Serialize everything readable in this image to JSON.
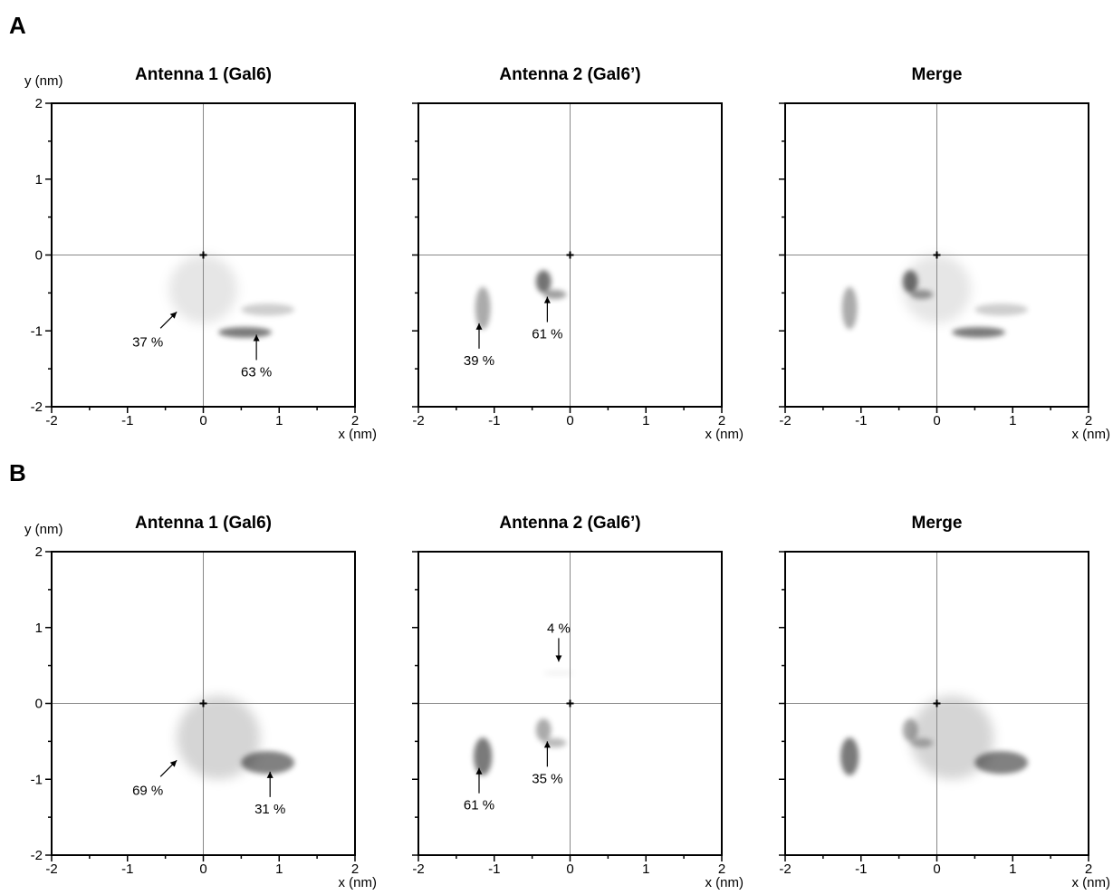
{
  "chart_data": [
    {
      "type": "heatmap",
      "panel": "A",
      "title": "Antenna 1 (Gal6)",
      "xlabel": "x (nm)",
      "ylabel": "y (nm)",
      "xlim": [
        -2,
        2
      ],
      "ylim": [
        -2,
        2
      ],
      "xticks": [
        "-2",
        "-1",
        "0",
        "1",
        "2"
      ],
      "yticks": [
        "-2",
        "-1",
        "0",
        "1",
        "2"
      ],
      "grid": "crosshair at origin",
      "density_clusters": [
        {
          "center": [
            0.0,
            -0.45
          ],
          "spread": [
            0.45,
            0.45
          ],
          "strength": 0.18
        },
        {
          "center": [
            0.55,
            -1.02
          ],
          "spread": [
            0.35,
            0.07
          ],
          "strength": 0.95
        },
        {
          "center": [
            0.85,
            -0.72
          ],
          "spread": [
            0.35,
            0.08
          ],
          "strength": 0.35
        }
      ],
      "annotations": [
        {
          "text": "37 %",
          "x": -0.35,
          "y": -0.75,
          "direction": "from-lower-left"
        },
        {
          "text": "63 %",
          "x": 0.7,
          "y": -1.05,
          "direction": "from-below"
        }
      ]
    },
    {
      "type": "heatmap",
      "panel": "A",
      "title": "Antenna 2 (Gal6’)",
      "xlabel": "x (nm)",
      "ylabel": "",
      "xlim": [
        -2,
        2
      ],
      "ylim": [
        -2,
        2
      ],
      "xticks": [
        "-2",
        "-1",
        "0",
        "1",
        "2"
      ],
      "yticks": [],
      "grid": "crosshair at origin",
      "density_clusters": [
        {
          "center": [
            -1.15,
            -0.7
          ],
          "spread": [
            0.1,
            0.28
          ],
          "strength": 0.6
        },
        {
          "center": [
            -0.35,
            -0.35
          ],
          "spread": [
            0.1,
            0.15
          ],
          "strength": 1.0
        },
        {
          "center": [
            -0.2,
            -0.52
          ],
          "spread": [
            0.15,
            0.06
          ],
          "strength": 0.7
        }
      ],
      "annotations": [
        {
          "text": "39 %",
          "x": -1.2,
          "y": -0.9,
          "direction": "from-below"
        },
        {
          "text": "61 %",
          "x": -0.3,
          "y": -0.55,
          "direction": "from-below"
        }
      ]
    },
    {
      "type": "heatmap",
      "panel": "A",
      "title": "Merge",
      "xlabel": "x (nm)",
      "ylabel": "",
      "xlim": [
        -2,
        2
      ],
      "ylim": [
        -2,
        2
      ],
      "xticks": [
        "-2",
        "-1",
        "0",
        "1",
        "2"
      ],
      "yticks": [],
      "grid": "crosshair at origin",
      "density_clusters": [
        {
          "center": [
            0.0,
            -0.45
          ],
          "spread": [
            0.45,
            0.45
          ],
          "strength": 0.18
        },
        {
          "center": [
            0.55,
            -1.02
          ],
          "spread": [
            0.35,
            0.07
          ],
          "strength": 0.95
        },
        {
          "center": [
            0.85,
            -0.72
          ],
          "spread": [
            0.35,
            0.08
          ],
          "strength": 0.35
        },
        {
          "center": [
            -1.15,
            -0.7
          ],
          "spread": [
            0.1,
            0.28
          ],
          "strength": 0.6
        },
        {
          "center": [
            -0.35,
            -0.35
          ],
          "spread": [
            0.1,
            0.15
          ],
          "strength": 1.0
        },
        {
          "center": [
            -0.2,
            -0.52
          ],
          "spread": [
            0.15,
            0.06
          ],
          "strength": 0.7
        }
      ],
      "annotations": []
    },
    {
      "type": "heatmap",
      "panel": "B",
      "title": "Antenna 1 (Gal6)",
      "xlabel": "x (nm)",
      "ylabel": "y (nm)",
      "xlim": [
        -2,
        2
      ],
      "ylim": [
        -2,
        2
      ],
      "xticks": [
        "-2",
        "-1",
        "0",
        "1",
        "2"
      ],
      "yticks": [
        "-2",
        "-1",
        "0",
        "1",
        "2"
      ],
      "grid": "crosshair at origin",
      "density_clusters": [
        {
          "center": [
            0.2,
            -0.45
          ],
          "spread": [
            0.55,
            0.55
          ],
          "strength": 0.3
        },
        {
          "center": [
            0.85,
            -0.78
          ],
          "spread": [
            0.35,
            0.15
          ],
          "strength": 0.9
        }
      ],
      "annotations": [
        {
          "text": "69 %",
          "x": -0.35,
          "y": -0.75,
          "direction": "from-lower-left"
        },
        {
          "text": "31 %",
          "x": 0.88,
          "y": -0.9,
          "direction": "from-below"
        }
      ]
    },
    {
      "type": "heatmap",
      "panel": "B",
      "title": "Antenna 2 (Gal6’)",
      "xlabel": "x (nm)",
      "ylabel": "",
      "xlim": [
        -2,
        2
      ],
      "ylim": [
        -2,
        2
      ],
      "xticks": [
        "-2",
        "-1",
        "0",
        "1",
        "2"
      ],
      "yticks": [],
      "grid": "crosshair at origin",
      "density_clusters": [
        {
          "center": [
            -1.15,
            -0.7
          ],
          "spread": [
            0.12,
            0.25
          ],
          "strength": 0.95
        },
        {
          "center": [
            -0.35,
            -0.35
          ],
          "spread": [
            0.1,
            0.15
          ],
          "strength": 0.6
        },
        {
          "center": [
            -0.2,
            -0.52
          ],
          "spread": [
            0.15,
            0.06
          ],
          "strength": 0.5
        },
        {
          "center": [
            -0.15,
            0.4
          ],
          "spread": [
            0.2,
            0.04
          ],
          "strength": 0.08
        }
      ],
      "annotations": [
        {
          "text": "4 %",
          "x": -0.15,
          "y": 0.55,
          "direction": "from-above"
        },
        {
          "text": "61 %",
          "x": -1.2,
          "y": -0.85,
          "direction": "from-below"
        },
        {
          "text": "35 %",
          "x": -0.3,
          "y": -0.5,
          "direction": "from-below"
        }
      ]
    },
    {
      "type": "heatmap",
      "panel": "B",
      "title": "Merge",
      "xlabel": "x (nm)",
      "ylabel": "",
      "xlim": [
        -2,
        2
      ],
      "ylim": [
        -2,
        2
      ],
      "xticks": [
        "-2",
        "-1",
        "0",
        "1",
        "2"
      ],
      "yticks": [],
      "grid": "crosshair at origin",
      "density_clusters": [
        {
          "center": [
            0.2,
            -0.45
          ],
          "spread": [
            0.55,
            0.55
          ],
          "strength": 0.3
        },
        {
          "center": [
            0.85,
            -0.78
          ],
          "spread": [
            0.35,
            0.15
          ],
          "strength": 0.9
        },
        {
          "center": [
            -1.15,
            -0.7
          ],
          "spread": [
            0.12,
            0.25
          ],
          "strength": 0.95
        },
        {
          "center": [
            -0.35,
            -0.35
          ],
          "spread": [
            0.1,
            0.15
          ],
          "strength": 0.6
        },
        {
          "center": [
            -0.2,
            -0.52
          ],
          "spread": [
            0.15,
            0.06
          ],
          "strength": 0.5
        }
      ],
      "annotations": []
    }
  ],
  "panel_labels": [
    "A",
    "B"
  ],
  "colors": {
    "axis": "#000000",
    "crosshair": "#888888",
    "density": "#000000"
  }
}
